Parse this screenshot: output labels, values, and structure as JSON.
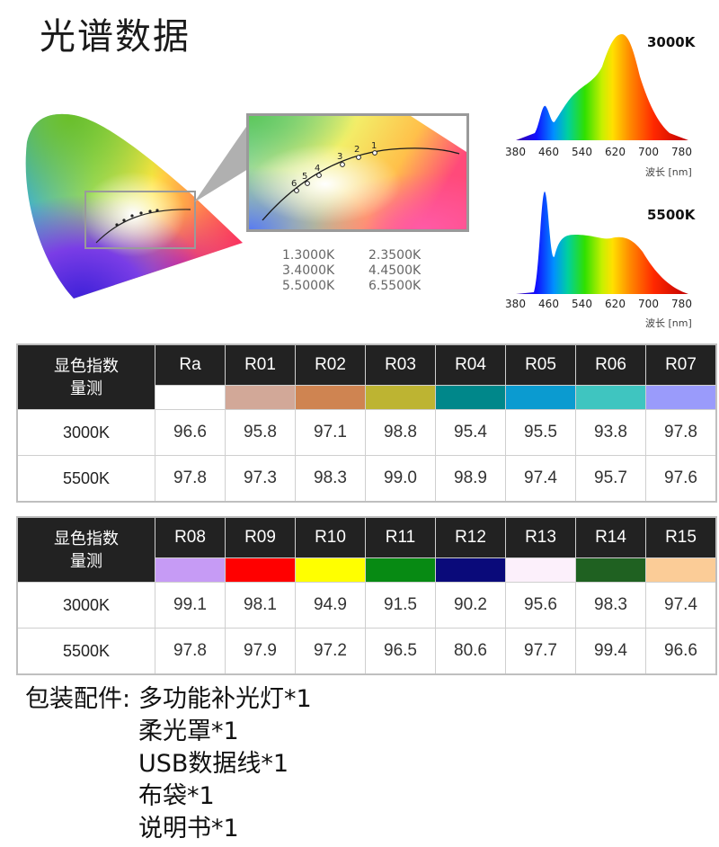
{
  "title": "光谱数据",
  "cie_legend": [
    "1.3000K",
    "2.3500K",
    "3.4000K",
    "4.4500K",
    "5.5000K",
    "6.5500K"
  ],
  "curve_point_labels": [
    "1",
    "2",
    "3",
    "4",
    "5",
    "6"
  ],
  "spectra": [
    {
      "label": "3000K",
      "ticks": [
        "380",
        "460",
        "540",
        "620",
        "700",
        "780"
      ],
      "unit": "波长 [nm]"
    },
    {
      "label": "5500K",
      "ticks": [
        "380",
        "460",
        "540",
        "620",
        "700",
        "780"
      ],
      "unit": "波长 [nm]"
    }
  ],
  "tables": [
    {
      "header_label": [
        "显色指数",
        "量测"
      ],
      "codes": [
        "Ra",
        "R01",
        "R02",
        "R03",
        "R04",
        "R05",
        "R06",
        "R07"
      ],
      "swatches": [
        "#ffffff",
        "#d2a898",
        "#cf8451",
        "#bdb432",
        "#00878a",
        "#0b9bd0",
        "#3fc5c0",
        "#9a9bfb"
      ],
      "rows": [
        {
          "label": "3000K",
          "values": [
            "96.6",
            "95.8",
            "97.1",
            "98.8",
            "95.4",
            "95.5",
            "93.8",
            "97.8"
          ]
        },
        {
          "label": "5500K",
          "values": [
            "97.8",
            "97.3",
            "98.3",
            "99.0",
            "98.9",
            "97.4",
            "95.7",
            "97.6"
          ]
        }
      ]
    },
    {
      "header_label": [
        "显色指数",
        "量测"
      ],
      "codes": [
        "R08",
        "R09",
        "R10",
        "R11",
        "R12",
        "R13",
        "R14",
        "R15"
      ],
      "swatches": [
        "#c69bf5",
        "#ff0000",
        "#ffff00",
        "#078a13",
        "#0a0a7a",
        "#fcf0fb",
        "#1f6121",
        "#fbcc97"
      ],
      "rows": [
        {
          "label": "3000K",
          "values": [
            "99.1",
            "98.1",
            "94.9",
            "91.5",
            "90.2",
            "95.6",
            "98.3",
            "97.4"
          ]
        },
        {
          "label": "5500K",
          "values": [
            "97.8",
            "97.9",
            "97.2",
            "96.5",
            "80.6",
            "97.7",
            "99.4",
            "96.6"
          ]
        }
      ]
    }
  ],
  "package": {
    "label": "包装配件:",
    "items": [
      "多功能补光灯*1",
      "柔光罩*1",
      "USB数据线*1",
      "布袋*1",
      "说明书*1"
    ]
  }
}
